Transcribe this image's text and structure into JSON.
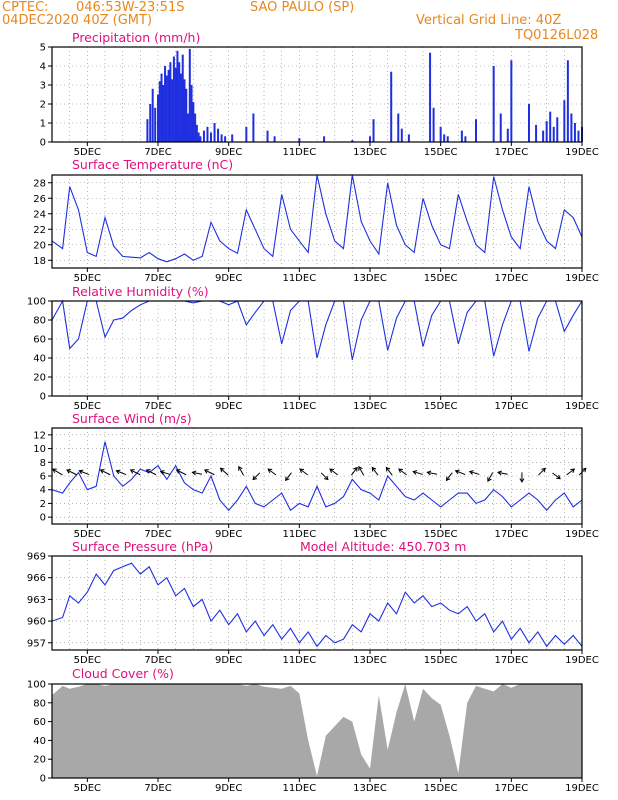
{
  "header": {
    "source": "CPTEC:",
    "coords": "046:53W-23:51S",
    "location": "SAO PAULO (SP)",
    "run": "04DEC2020 40Z (GMT)",
    "grid_note": "Vertical Grid Line: 40Z",
    "model_code": "TQ0126L028"
  },
  "colors": {
    "header": "#e8871e",
    "title": "#e0107f",
    "series": "#1f2fe0",
    "cloud": "#a8a8a8",
    "grid": "#888888"
  },
  "x_ticks": [
    "5DEC",
    "7DEC",
    "9DEC",
    "11DEC",
    "13DEC",
    "15DEC",
    "17DEC",
    "19DEC"
  ],
  "chart_data": [
    {
      "id": "precipitation",
      "type": "bar",
      "title": "Precipitation (mm/h)",
      "ylim": [
        0,
        5
      ],
      "yticks": [
        0,
        1,
        2,
        3,
        4,
        5
      ],
      "xlim": [
        4.0,
        19.0
      ],
      "grid": true,
      "x": [
        6.7,
        6.78,
        6.85,
        6.92,
        7.0,
        7.05,
        7.1,
        7.15,
        7.2,
        7.25,
        7.3,
        7.35,
        7.4,
        7.45,
        7.5,
        7.55,
        7.6,
        7.65,
        7.7,
        7.75,
        7.8,
        7.85,
        7.9,
        7.95,
        8.0,
        8.05,
        8.1,
        8.15,
        8.2,
        8.3,
        8.4,
        8.5,
        8.6,
        8.7,
        8.8,
        8.9,
        9.1,
        9.5,
        9.7,
        10.1,
        10.3,
        11.0,
        11.7,
        12.5,
        13.0,
        13.1,
        13.6,
        13.8,
        13.9,
        14.1,
        14.7,
        14.8,
        15.0,
        15.1,
        15.2,
        15.6,
        15.7,
        16.0,
        16.5,
        16.7,
        16.9,
        17.0,
        17.5,
        17.7,
        17.9,
        18.0,
        18.1,
        18.2,
        18.3,
        18.5,
        18.6,
        18.7,
        18.8,
        18.9,
        19.0
      ],
      "values": [
        1.2,
        2.0,
        2.8,
        1.8,
        2.5,
        3.2,
        3.6,
        3.0,
        4.0,
        3.5,
        3.8,
        4.2,
        3.3,
        4.5,
        3.9,
        4.8,
        4.2,
        3.6,
        4.6,
        3.3,
        2.8,
        1.5,
        4.9,
        3.0,
        2.1,
        1.5,
        0.9,
        0.5,
        0.3,
        0.6,
        0.8,
        0.5,
        1.0,
        0.7,
        0.4,
        0.3,
        0.4,
        0.8,
        1.5,
        0.6,
        0.3,
        0.2,
        0.3,
        0.1,
        0.3,
        1.2,
        3.7,
        1.5,
        0.7,
        0.4,
        4.7,
        1.8,
        0.8,
        0.4,
        0.3,
        0.6,
        0.3,
        1.2,
        4.0,
        1.5,
        0.7,
        4.3,
        2.0,
        0.9,
        0.6,
        1.1,
        1.6,
        0.8,
        1.3,
        2.2,
        4.3,
        1.5,
        1.0,
        0.6,
        0.8
      ]
    },
    {
      "id": "surface_temperature",
      "type": "line",
      "title": "Surface Temperature (nC)",
      "ylim": [
        17,
        29
      ],
      "yticks": [
        18,
        20,
        22,
        24,
        26,
        28
      ],
      "xlim": [
        4.0,
        19.0
      ],
      "grid": true,
      "x": [
        4.0,
        4.3,
        4.5,
        4.75,
        5.0,
        5.25,
        5.5,
        5.75,
        6.0,
        6.25,
        6.5,
        6.75,
        7.0,
        7.25,
        7.5,
        7.75,
        8.0,
        8.25,
        8.5,
        8.75,
        9.0,
        9.25,
        9.5,
        9.75,
        10.0,
        10.25,
        10.5,
        10.75,
        11.0,
        11.25,
        11.5,
        11.75,
        12.0,
        12.25,
        12.5,
        12.75,
        13.0,
        13.25,
        13.5,
        13.75,
        14.0,
        14.25,
        14.5,
        14.75,
        15.0,
        15.25,
        15.5,
        15.75,
        16.0,
        16.25,
        16.5,
        16.75,
        17.0,
        17.25,
        17.5,
        17.75,
        18.0,
        18.25,
        18.5,
        18.75,
        19.0
      ],
      "values": [
        20.5,
        19.5,
        27.5,
        24.5,
        19.0,
        18.5,
        23.5,
        19.8,
        18.5,
        18.4,
        18.3,
        19.0,
        18.2,
        17.8,
        18.2,
        18.8,
        18.0,
        18.5,
        22.9,
        20.5,
        19.5,
        18.9,
        24.5,
        22.0,
        19.5,
        18.5,
        26.5,
        22.0,
        20.5,
        19.0,
        29.0,
        24.0,
        20.5,
        19.5,
        29.0,
        23.0,
        20.5,
        18.8,
        28.0,
        22.5,
        20.0,
        19.0,
        26.0,
        22.5,
        20.0,
        19.5,
        26.5,
        23.0,
        20.0,
        19.0,
        28.8,
        24.5,
        21.0,
        19.5,
        27.5,
        23.0,
        20.5,
        19.5,
        24.5,
        23.5,
        21.0
      ]
    },
    {
      "id": "relative_humidity",
      "type": "line",
      "title": "Relative Humidity (%)",
      "ylim": [
        0,
        100
      ],
      "yticks": [
        0,
        20,
        40,
        60,
        80,
        100
      ],
      "xlim": [
        4.0,
        19.0
      ],
      "grid": true,
      "x": [
        4.0,
        4.3,
        4.5,
        4.75,
        5.0,
        5.25,
        5.5,
        5.75,
        6.0,
        6.25,
        6.5,
        6.75,
        7.0,
        7.25,
        7.5,
        7.75,
        8.0,
        8.25,
        8.5,
        8.75,
        9.0,
        9.25,
        9.5,
        9.75,
        10.0,
        10.25,
        10.5,
        10.75,
        11.0,
        11.25,
        11.5,
        11.75,
        12.0,
        12.25,
        12.5,
        12.75,
        13.0,
        13.25,
        13.5,
        13.75,
        14.0,
        14.25,
        14.5,
        14.75,
        15.0,
        15.25,
        15.5,
        15.75,
        16.0,
        16.25,
        16.5,
        16.75,
        17.0,
        17.25,
        17.5,
        17.75,
        18.0,
        18.25,
        18.5,
        18.75,
        19.0
      ],
      "values": [
        80,
        100,
        50,
        60,
        100,
        100,
        62,
        80,
        82,
        90,
        96,
        100,
        100,
        100,
        100,
        100,
        98,
        100,
        100,
        100,
        96,
        100,
        75,
        88,
        100,
        100,
        55,
        90,
        100,
        100,
        40,
        75,
        100,
        100,
        38,
        80,
        100,
        100,
        48,
        82,
        100,
        100,
        52,
        85,
        100,
        100,
        55,
        88,
        100,
        100,
        42,
        75,
        100,
        100,
        47,
        82,
        100,
        100,
        68,
        85,
        100
      ]
    },
    {
      "id": "surface_wind",
      "type": "line",
      "title": "Surface Wind (m/s)",
      "ylim": [
        -1,
        13
      ],
      "yticks": [
        0,
        2,
        4,
        6,
        8,
        10,
        12
      ],
      "xlim": [
        4.0,
        19.0
      ],
      "grid": true,
      "x": [
        4.0,
        4.3,
        4.5,
        4.75,
        5.0,
        5.25,
        5.5,
        5.75,
        6.0,
        6.25,
        6.5,
        6.75,
        7.0,
        7.25,
        7.5,
        7.75,
        8.0,
        8.25,
        8.5,
        8.75,
        9.0,
        9.25,
        9.5,
        9.75,
        10.0,
        10.25,
        10.5,
        10.75,
        11.0,
        11.25,
        11.5,
        11.75,
        12.0,
        12.25,
        12.5,
        12.75,
        13.0,
        13.25,
        13.5,
        13.75,
        14.0,
        14.25,
        14.5,
        14.75,
        15.0,
        15.25,
        15.5,
        15.75,
        16.0,
        16.25,
        16.5,
        16.75,
        17.0,
        17.25,
        17.5,
        17.75,
        18.0,
        18.25,
        18.5,
        18.75,
        19.0
      ],
      "values": [
        4,
        3.5,
        5,
        6.5,
        4,
        4.5,
        11,
        6,
        4.5,
        5.5,
        7,
        6.5,
        7.5,
        5.5,
        7.5,
        5,
        4,
        3.5,
        6,
        2.5,
        1,
        2.5,
        4.5,
        2,
        1.5,
        2.5,
        3.5,
        1,
        2,
        1.5,
        4.5,
        1.5,
        2,
        3,
        5.5,
        4,
        3.5,
        2.5,
        6,
        4.5,
        3,
        2.5,
        3.5,
        2.5,
        1.5,
        2.5,
        3.5,
        3.5,
        2,
        2.5,
        4,
        3,
        1.5,
        2.5,
        3.5,
        2.5,
        1,
        2.5,
        3.5,
        1.5,
        2.5
      ],
      "vectors": [
        {
          "x": 4.25,
          "u": -1,
          "v": 0.6
        },
        {
          "x": 4.65,
          "u": -1,
          "v": 0.5
        },
        {
          "x": 5.0,
          "u": -1,
          "v": 0.4
        },
        {
          "x": 5.6,
          "u": -1,
          "v": 0.5
        },
        {
          "x": 6.05,
          "u": -1,
          "v": 0.4
        },
        {
          "x": 6.45,
          "u": -1,
          "v": 0.5
        },
        {
          "x": 6.9,
          "u": -1,
          "v": 0.5
        },
        {
          "x": 7.3,
          "u": -1,
          "v": 0.3
        },
        {
          "x": 7.75,
          "u": -1,
          "v": 0.5
        },
        {
          "x": 8.2,
          "u": -1,
          "v": 0.2
        },
        {
          "x": 8.55,
          "u": -1,
          "v": 0.5
        },
        {
          "x": 8.95,
          "u": -0.8,
          "v": 0.7
        },
        {
          "x": 9.4,
          "u": -0.5,
          "v": 0.9
        },
        {
          "x": 9.85,
          "u": -0.7,
          "v": -0.7
        },
        {
          "x": 10.3,
          "u": -0.8,
          "v": 0.6
        },
        {
          "x": 10.75,
          "u": -0.6,
          "v": -0.8
        },
        {
          "x": 11.2,
          "u": -0.8,
          "v": 0.6
        },
        {
          "x": 11.65,
          "u": 0.7,
          "v": -0.7
        },
        {
          "x": 12.05,
          "u": -0.8,
          "v": 0.6
        },
        {
          "x": 12.5,
          "u": 0.6,
          "v": 0.8
        },
        {
          "x": 12.8,
          "u": -0.5,
          "v": 0.9
        },
        {
          "x": 13.2,
          "u": -0.6,
          "v": 0.8
        },
        {
          "x": 13.6,
          "u": -0.6,
          "v": 0.8
        },
        {
          "x": 14.0,
          "u": -0.8,
          "v": 0.6
        },
        {
          "x": 14.45,
          "u": -1,
          "v": 0.3
        },
        {
          "x": 14.85,
          "u": -1,
          "v": 0.2
        },
        {
          "x": 15.3,
          "u": -0.6,
          "v": -0.8
        },
        {
          "x": 15.65,
          "u": -1,
          "v": 0.4
        },
        {
          "x": 16.05,
          "u": -1,
          "v": 0.3
        },
        {
          "x": 16.45,
          "u": -0.5,
          "v": -0.9
        },
        {
          "x": 16.85,
          "u": -1,
          "v": 0.2
        },
        {
          "x": 17.3,
          "u": 0,
          "v": -1
        },
        {
          "x": 17.8,
          "u": 0.7,
          "v": 0.7
        },
        {
          "x": 18.2,
          "u": 0.8,
          "v": -0.6
        },
        {
          "x": 18.6,
          "u": 0.8,
          "v": 0.6
        },
        {
          "x": 18.95,
          "u": 0.7,
          "v": 0.7
        }
      ]
    },
    {
      "id": "surface_pressure",
      "type": "line",
      "title": "Surface Pressure (hPa)",
      "subtitle": "Model Altitude: 450.703 m",
      "ylim": [
        956,
        969
      ],
      "yticks": [
        957,
        960,
        963,
        966,
        969
      ],
      "xlim": [
        4.0,
        19.0
      ],
      "grid": true,
      "x": [
        4.0,
        4.3,
        4.5,
        4.75,
        5.0,
        5.25,
        5.5,
        5.75,
        6.0,
        6.25,
        6.5,
        6.75,
        7.0,
        7.25,
        7.5,
        7.75,
        8.0,
        8.25,
        8.5,
        8.75,
        9.0,
        9.25,
        9.5,
        9.75,
        10.0,
        10.25,
        10.5,
        10.75,
        11.0,
        11.25,
        11.5,
        11.75,
        12.0,
        12.25,
        12.5,
        12.75,
        13.0,
        13.25,
        13.5,
        13.75,
        14.0,
        14.25,
        14.5,
        14.75,
        15.0,
        15.25,
        15.5,
        15.75,
        16.0,
        16.25,
        16.5,
        16.75,
        17.0,
        17.25,
        17.5,
        17.75,
        18.0,
        18.25,
        18.5,
        18.75,
        19.0
      ],
      "values": [
        960,
        960.5,
        963.5,
        962.5,
        964,
        966.5,
        965,
        967,
        967.5,
        968,
        966.5,
        967.5,
        965,
        966,
        963.5,
        964.5,
        962,
        963,
        960,
        961.5,
        959.5,
        961,
        958.5,
        960,
        958,
        959.5,
        957.5,
        959,
        957,
        958.5,
        956.5,
        958,
        957,
        957.5,
        959.5,
        958.5,
        961,
        960,
        962.5,
        961,
        964,
        962.5,
        963.5,
        962,
        962.5,
        961.5,
        961,
        962,
        960,
        961,
        958.5,
        960,
        957.5,
        959,
        957,
        958.5,
        956.5,
        958,
        956.8,
        958,
        956.5
      ]
    },
    {
      "id": "cloud_cover",
      "type": "area",
      "title": "Cloud Cover (%)",
      "ylim": [
        0,
        100
      ],
      "yticks": [
        0,
        20,
        40,
        60,
        80,
        100
      ],
      "xlim": [
        4.0,
        19.0
      ],
      "grid": false,
      "x": [
        4.0,
        4.3,
        4.5,
        4.75,
        5.0,
        5.25,
        5.5,
        5.75,
        6.0,
        6.25,
        6.5,
        6.75,
        7.0,
        7.25,
        7.5,
        7.75,
        8.0,
        8.25,
        8.5,
        8.75,
        9.0,
        9.25,
        9.5,
        9.75,
        10.0,
        10.25,
        10.5,
        10.75,
        11.0,
        11.25,
        11.5,
        11.75,
        12.0,
        12.25,
        12.5,
        12.75,
        13.0,
        13.25,
        13.5,
        13.75,
        14.0,
        14.25,
        14.5,
        14.75,
        15.0,
        15.25,
        15.5,
        15.75,
        16.0,
        16.25,
        16.5,
        16.75,
        17.0,
        17.25,
        17.5,
        17.75,
        18.0,
        18.25,
        18.5,
        18.75,
        19.0
      ],
      "values": [
        88,
        98,
        95,
        97,
        100,
        100,
        98,
        100,
        100,
        100,
        100,
        100,
        100,
        100,
        100,
        100,
        100,
        100,
        100,
        100,
        100,
        100,
        98,
        100,
        97,
        96,
        95,
        98,
        90,
        40,
        2,
        45,
        55,
        65,
        60,
        25,
        10,
        88,
        30,
        70,
        100,
        60,
        95,
        85,
        78,
        45,
        5,
        80,
        98,
        95,
        92,
        100,
        96,
        100,
        100,
        100,
        100,
        100,
        100,
        100,
        100
      ]
    }
  ]
}
